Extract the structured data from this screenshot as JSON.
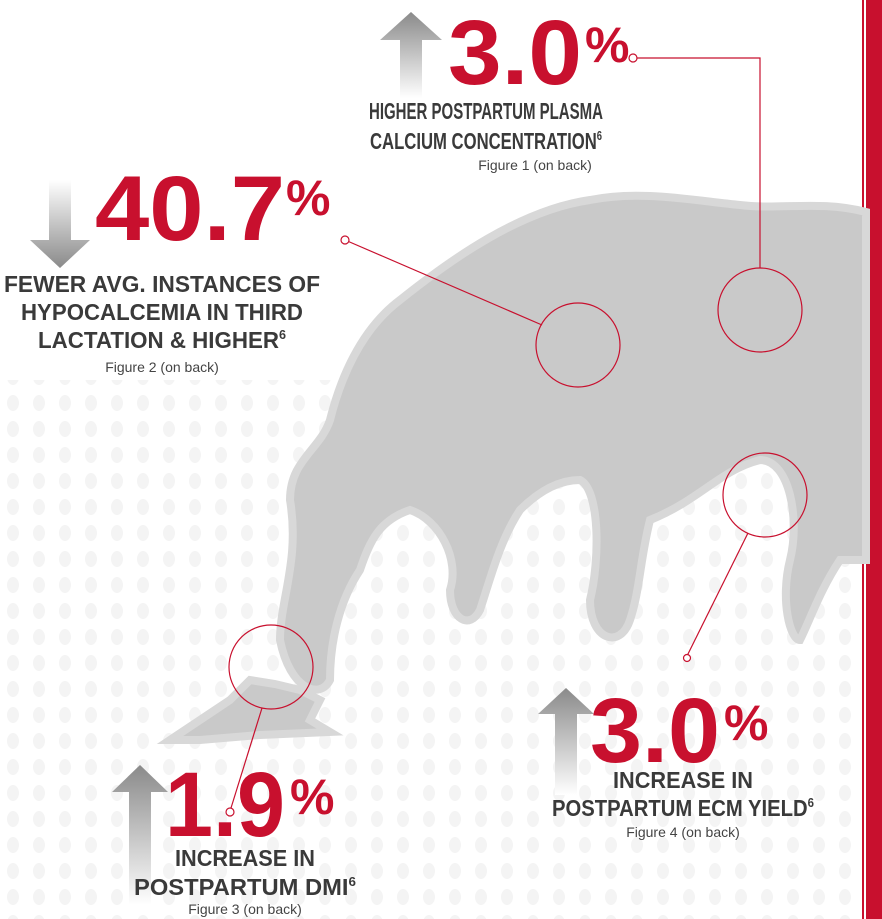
{
  "stats": [
    {
      "value": "3.0",
      "unit": "%",
      "label": [
        "HIGHER POSTPARTUM PLASMA",
        "CALCIUM CONCENTRATION"
      ],
      "footnote": "6",
      "caption": "Figure 1 (on back)"
    },
    {
      "value": "40.7",
      "unit": "%",
      "label": [
        "FEWER AVG. INSTANCES OF",
        "HYPOCALCEMIA IN THIRD",
        "LACTATION & HIGHER"
      ],
      "footnote": "6",
      "caption": "Figure 2 (on back)"
    },
    {
      "value": "1.9",
      "unit": "%",
      "label": [
        "INCREASE IN",
        "POSTPARTUM DMI"
      ],
      "footnote": "6",
      "caption": "Figure 3 (on back)"
    },
    {
      "value": "3.0",
      "unit": "%",
      "label": [
        "INCREASE IN",
        "POSTPARTUM ECM YIELD"
      ],
      "footnote": "6",
      "caption": "Figure 4 (on back)"
    }
  ]
}
